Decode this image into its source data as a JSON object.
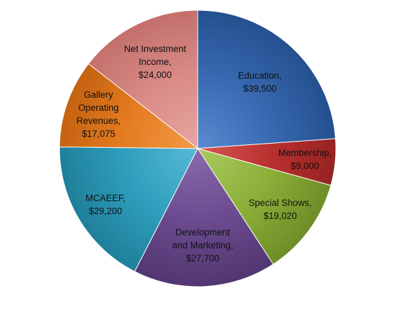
{
  "chart_data": {
    "type": "pie",
    "title": "",
    "start_angle_deg": 0,
    "direction": "clockwise",
    "slices": [
      {
        "category": "Education",
        "value": 39500,
        "label_lines": [
          "Education,",
          "$39,500"
        ],
        "color": "#3868B0",
        "color_light": "#5A8AD0",
        "color_dark": "#24508F"
      },
      {
        "category": "Membership",
        "value": 9000,
        "label_lines": [
          "Membership,",
          "$9,000"
        ],
        "color": "#B8302E",
        "color_light": "#D75654",
        "color_dark": "#962322"
      },
      {
        "category": "Special Shows",
        "value": 19020,
        "label_lines": [
          "Special Shows,",
          "$19,020"
        ],
        "color": "#8CAF3A",
        "color_light": "#AACB5D",
        "color_dark": "#6D8E27"
      },
      {
        "category": "Development and Marketing",
        "value": 27700,
        "label_lines": [
          "Development",
          "and Marketing,",
          "$27,700"
        ],
        "color": "#6A4A8E",
        "color_light": "#8A6AAD",
        "color_dark": "#523671"
      },
      {
        "category": "MCAEEF",
        "value": 29200,
        "label_lines": [
          "MCAEEF,",
          "$29,200"
        ],
        "color": "#2E9EBC",
        "color_light": "#56BAD6",
        "color_dark": "#1F7F9A"
      },
      {
        "category": "Gallery Operating Revenues",
        "value": 17075,
        "label_lines": [
          "Gallery",
          "Operating",
          "Revenues,",
          "$17,075"
        ],
        "color": "#E47B20",
        "color_light": "#F29A47",
        "color_dark": "#C46210"
      },
      {
        "category": "Net Investment Income",
        "value": 24000,
        "label_lines": [
          "Net Investment",
          "Income,",
          "$24,000"
        ],
        "color": "#D98A86",
        "color_light": "#E7A6A2",
        "color_dark": "#C3706C"
      }
    ]
  }
}
